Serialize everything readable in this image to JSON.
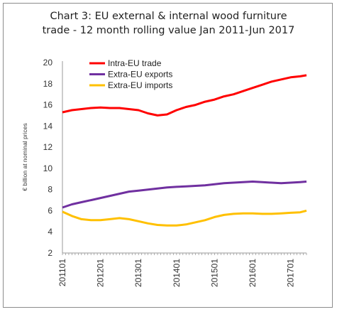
{
  "chart_data": {
    "type": "line",
    "title_line1": "Chart 3: EU external & internal wood furniture",
    "title_line2": "trade - 12 month rolling value Jan 2011-Jun 2017",
    "ylabel": "€ billion at nominal prices",
    "xlabel": "",
    "ylim": [
      2,
      20
    ],
    "yticks": [
      "2",
      "4",
      "6",
      "8",
      "10",
      "12",
      "14",
      "16",
      "18",
      "20"
    ],
    "xticks": [
      "201101",
      "201201",
      "201301",
      "201401",
      "201501",
      "201601",
      "201701"
    ],
    "grid": false,
    "legend_position": "top-left",
    "x_months": [
      "201101",
      "201104",
      "201107",
      "201110",
      "201201",
      "201204",
      "201207",
      "201210",
      "201301",
      "201304",
      "201307",
      "201310",
      "201401",
      "201404",
      "201407",
      "201410",
      "201501",
      "201504",
      "201507",
      "201510",
      "201601",
      "201604",
      "201607",
      "201610",
      "201701",
      "201704",
      "201706"
    ],
    "series": [
      {
        "name": "Intra-EU trade",
        "color": "#ff0000",
        "values": [
          15.3,
          15.5,
          15.6,
          15.7,
          15.75,
          15.7,
          15.7,
          15.6,
          15.5,
          15.2,
          15.0,
          15.1,
          15.5,
          15.8,
          16.0,
          16.3,
          16.5,
          16.8,
          17.0,
          17.3,
          17.6,
          17.9,
          18.2,
          18.4,
          18.6,
          18.7,
          18.8
        ]
      },
      {
        "name": "Extra-EU exports",
        "color": "#7030a0",
        "values": [
          6.3,
          6.6,
          6.8,
          7.0,
          7.2,
          7.4,
          7.6,
          7.8,
          7.9,
          8.0,
          8.1,
          8.2,
          8.25,
          8.3,
          8.35,
          8.4,
          8.5,
          8.6,
          8.65,
          8.7,
          8.75,
          8.7,
          8.65,
          8.6,
          8.65,
          8.7,
          8.75
        ]
      },
      {
        "name": "Extra-EU imports",
        "color": "#ffc000",
        "values": [
          5.9,
          5.5,
          5.2,
          5.1,
          5.1,
          5.2,
          5.3,
          5.2,
          5.0,
          4.8,
          4.65,
          4.6,
          4.6,
          4.7,
          4.9,
          5.1,
          5.4,
          5.6,
          5.7,
          5.75,
          5.75,
          5.7,
          5.7,
          5.75,
          5.8,
          5.85,
          6.0
        ]
      }
    ]
  }
}
